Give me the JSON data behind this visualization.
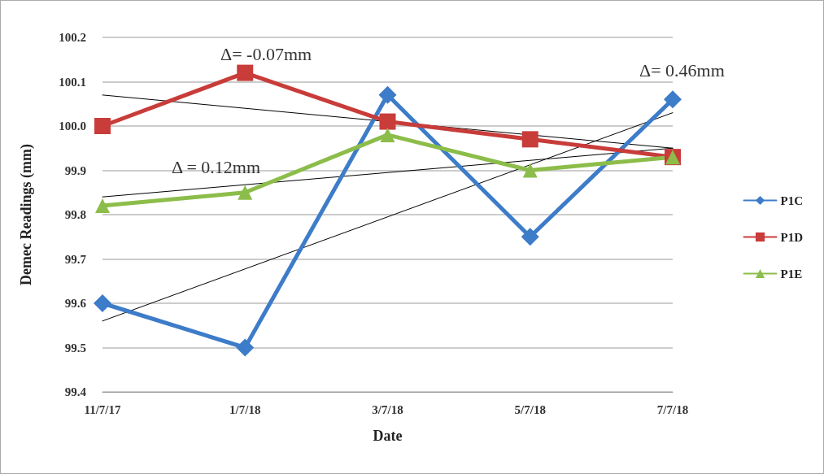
{
  "chart_data": {
    "type": "line",
    "xlabel": "Date",
    "ylabel": "Demec Readings (mm)",
    "categories": [
      "11/7/17",
      "1/7/18",
      "3/7/18",
      "5/7/18",
      "7/7/18"
    ],
    "series": [
      {
        "name": "P1C",
        "color": "#3d7cc9",
        "marker": "diamond",
        "values": [
          99.6,
          99.5,
          100.07,
          99.75,
          100.06
        ]
      },
      {
        "name": "P1D",
        "color": "#c83c3a",
        "marker": "square",
        "values": [
          100.0,
          100.12,
          100.01,
          99.97,
          99.93
        ]
      },
      {
        "name": "P1E",
        "color": "#8cbd4a",
        "marker": "triangle",
        "values": [
          99.82,
          99.85,
          99.98,
          99.9,
          99.93
        ]
      },
      {
        "type": "line",
        "color": "#000000",
        "marker": "none",
        "x": [
          "11/7/17",
          "7/7/18"
        ],
        "values": [
          99.56,
          100.03
        ]
      },
      {
        "type": "line",
        "color": "#000000",
        "marker": "none",
        "x": [
          "11/7/17",
          "7/7/18"
        ],
        "values": [
          100.07,
          99.95
        ]
      },
      {
        "type": "line",
        "color": "#000000",
        "marker": "none",
        "x": [
          "11/7/17",
          "7/7/18"
        ],
        "values": [
          99.84,
          99.95
        ]
      }
    ],
    "ylim": [
      99.4,
      100.2
    ],
    "yticks": [
      {
        "value": 99.4,
        "label": "99.4"
      },
      {
        "value": 99.5,
        "label": "99.5"
      },
      {
        "value": 99.6,
        "label": "99.6"
      },
      {
        "value": 99.7,
        "label": "99.7"
      },
      {
        "value": 99.8,
        "label": "99.8"
      },
      {
        "value": 99.9,
        "label": "99.9"
      },
      {
        "value": 100.0,
        "label": "100.0"
      },
      {
        "value": 100.1,
        "label": "100.1"
      },
      {
        "value": 100.2,
        "label": "100.2"
      }
    ],
    "annotations": [
      "Δ= -0.07mm",
      "Δ = 0.12mm",
      "Δ= 0.46mm"
    ],
    "grid": "y",
    "legend": "right",
    "line_style": "solid"
  }
}
